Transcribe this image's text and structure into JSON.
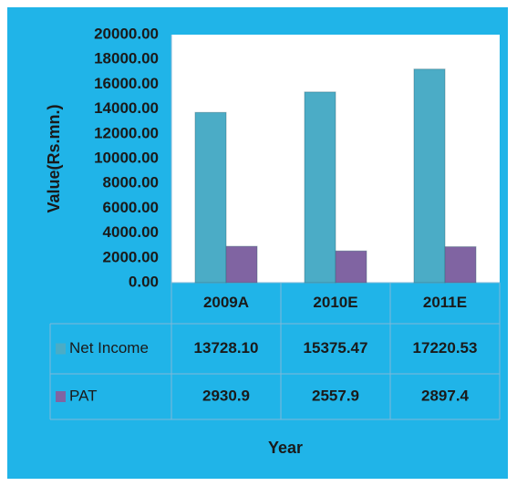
{
  "chart_data": {
    "type": "bar",
    "y_label": "Value(Rs.mn.)",
    "x_label": "Year",
    "categories": [
      "2009A",
      "2010E",
      "2011E"
    ],
    "series": [
      {
        "name": "Net Income",
        "color": "#4bacc6",
        "values": [
          13728.1,
          15375.47,
          17220.53
        ],
        "value_labels": [
          "13728.10",
          "15375.47",
          "17220.53"
        ]
      },
      {
        "name": "PAT",
        "color": "#8064a2",
        "values": [
          2930.9,
          2557.9,
          2897.4
        ]
      }
    ],
    "ylim": [
      0,
      20000
    ],
    "yticks": [
      {
        "value": 0,
        "label": "0.00"
      },
      {
        "value": 2000,
        "label": "2000.00"
      },
      {
        "value": 4000,
        "label": "4000.00"
      },
      {
        "value": 6000,
        "label": "6000.00"
      },
      {
        "value": 8000,
        "label": "8000.00"
      },
      {
        "value": 10000,
        "label": "10000.00"
      },
      {
        "value": 12000,
        "label": "12000.00"
      },
      {
        "value": 14000,
        "label": "14000.00"
      },
      {
        "value": 16000,
        "label": "16000.00"
      },
      {
        "value": 18000,
        "label": "18000.00"
      },
      {
        "value": 20000,
        "label": "20000.00"
      }
    ],
    "grid": false
  }
}
